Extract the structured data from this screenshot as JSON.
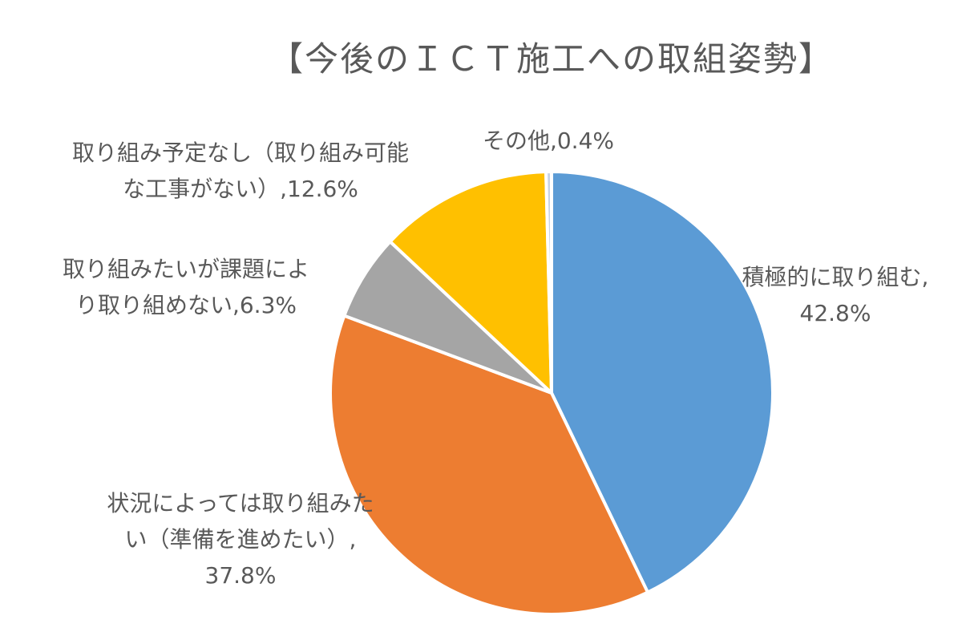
{
  "chart_data": {
    "type": "pie",
    "title": "【今後のＩＣＴ施工への取組姿勢】",
    "legend": "none",
    "slices": [
      {
        "name": "積極的に取り組む",
        "value": 42.8,
        "value_label": "42.8%",
        "label_lines": [
          "積極的に取り組む,",
          "42.8%"
        ],
        "color": "#5B9BD5"
      },
      {
        "name": "状況によっては取り組みたい（準備を進めたい）",
        "value": 37.8,
        "value_label": "37.8%",
        "label_lines": [
          "状況によっては取り組みた",
          "い（準備を進めたい）,",
          "37.8%"
        ],
        "color": "#ED7D31"
      },
      {
        "name": "取り組みたいが課題により取り組めない",
        "value": 6.3,
        "value_label": "6.3%",
        "label_lines": [
          "取り組みたいが課題によ",
          "り取り組めない,6.3%"
        ],
        "color": "#A5A5A5"
      },
      {
        "name": "取り組み予定なし（取り組み可能な工事がない）",
        "value": 12.6,
        "value_label": "12.6%",
        "label_lines": [
          "取り組み予定なし（取り組み可能",
          "な工事がない）,12.6%"
        ],
        "color": "#FFC000"
      },
      {
        "name": "その他",
        "value": 0.4,
        "value_label": "0.4%",
        "label_lines": [
          "その他,0.4%"
        ],
        "color": "#C7D3E6"
      }
    ]
  }
}
